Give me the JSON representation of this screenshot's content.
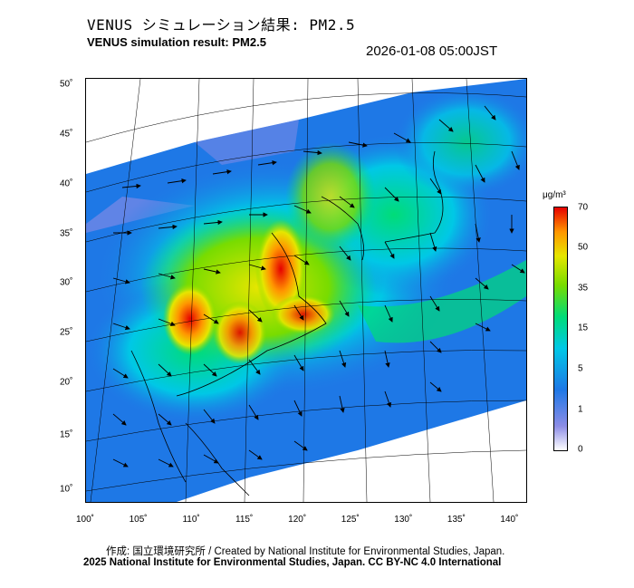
{
  "title_jp": "VENUS シミュレーション結果: PM2.5",
  "title_en": "VENUS simulation result: PM2.5",
  "timestamp": "2026-01-08 05:00JST",
  "map": {
    "lon_ticks": [
      "100˚",
      "105˚",
      "110˚",
      "115˚",
      "120˚",
      "125˚",
      "130˚",
      "135˚",
      "140˚"
    ],
    "lat_ticks": [
      "50˚",
      "45˚",
      "40˚",
      "35˚",
      "30˚",
      "25˚",
      "20˚",
      "15˚",
      "10˚"
    ],
    "lon_range": [
      100,
      141.5
    ],
    "lat_range": [
      9,
      51
    ],
    "field": "PM2.5 concentration with wind vectors"
  },
  "colorbar": {
    "unit": "μg/m³",
    "labels": [
      "70",
      "50",
      "35",
      "15",
      "5",
      "1",
      "0"
    ],
    "colors": [
      "#ffffff",
      "#8c8ce6",
      "#1e78e6",
      "#00c8e6",
      "#00dc78",
      "#78dc00",
      "#e6e600",
      "#ff9600",
      "#e60000"
    ]
  },
  "credits": {
    "line1": "作成: 国立環境研究所 / Created by National Institute for Environmental Studies, Japan.",
    "line2": "2025 National Institute for Environmental Studies, Japan. CC BY-NC 4.0 International"
  }
}
